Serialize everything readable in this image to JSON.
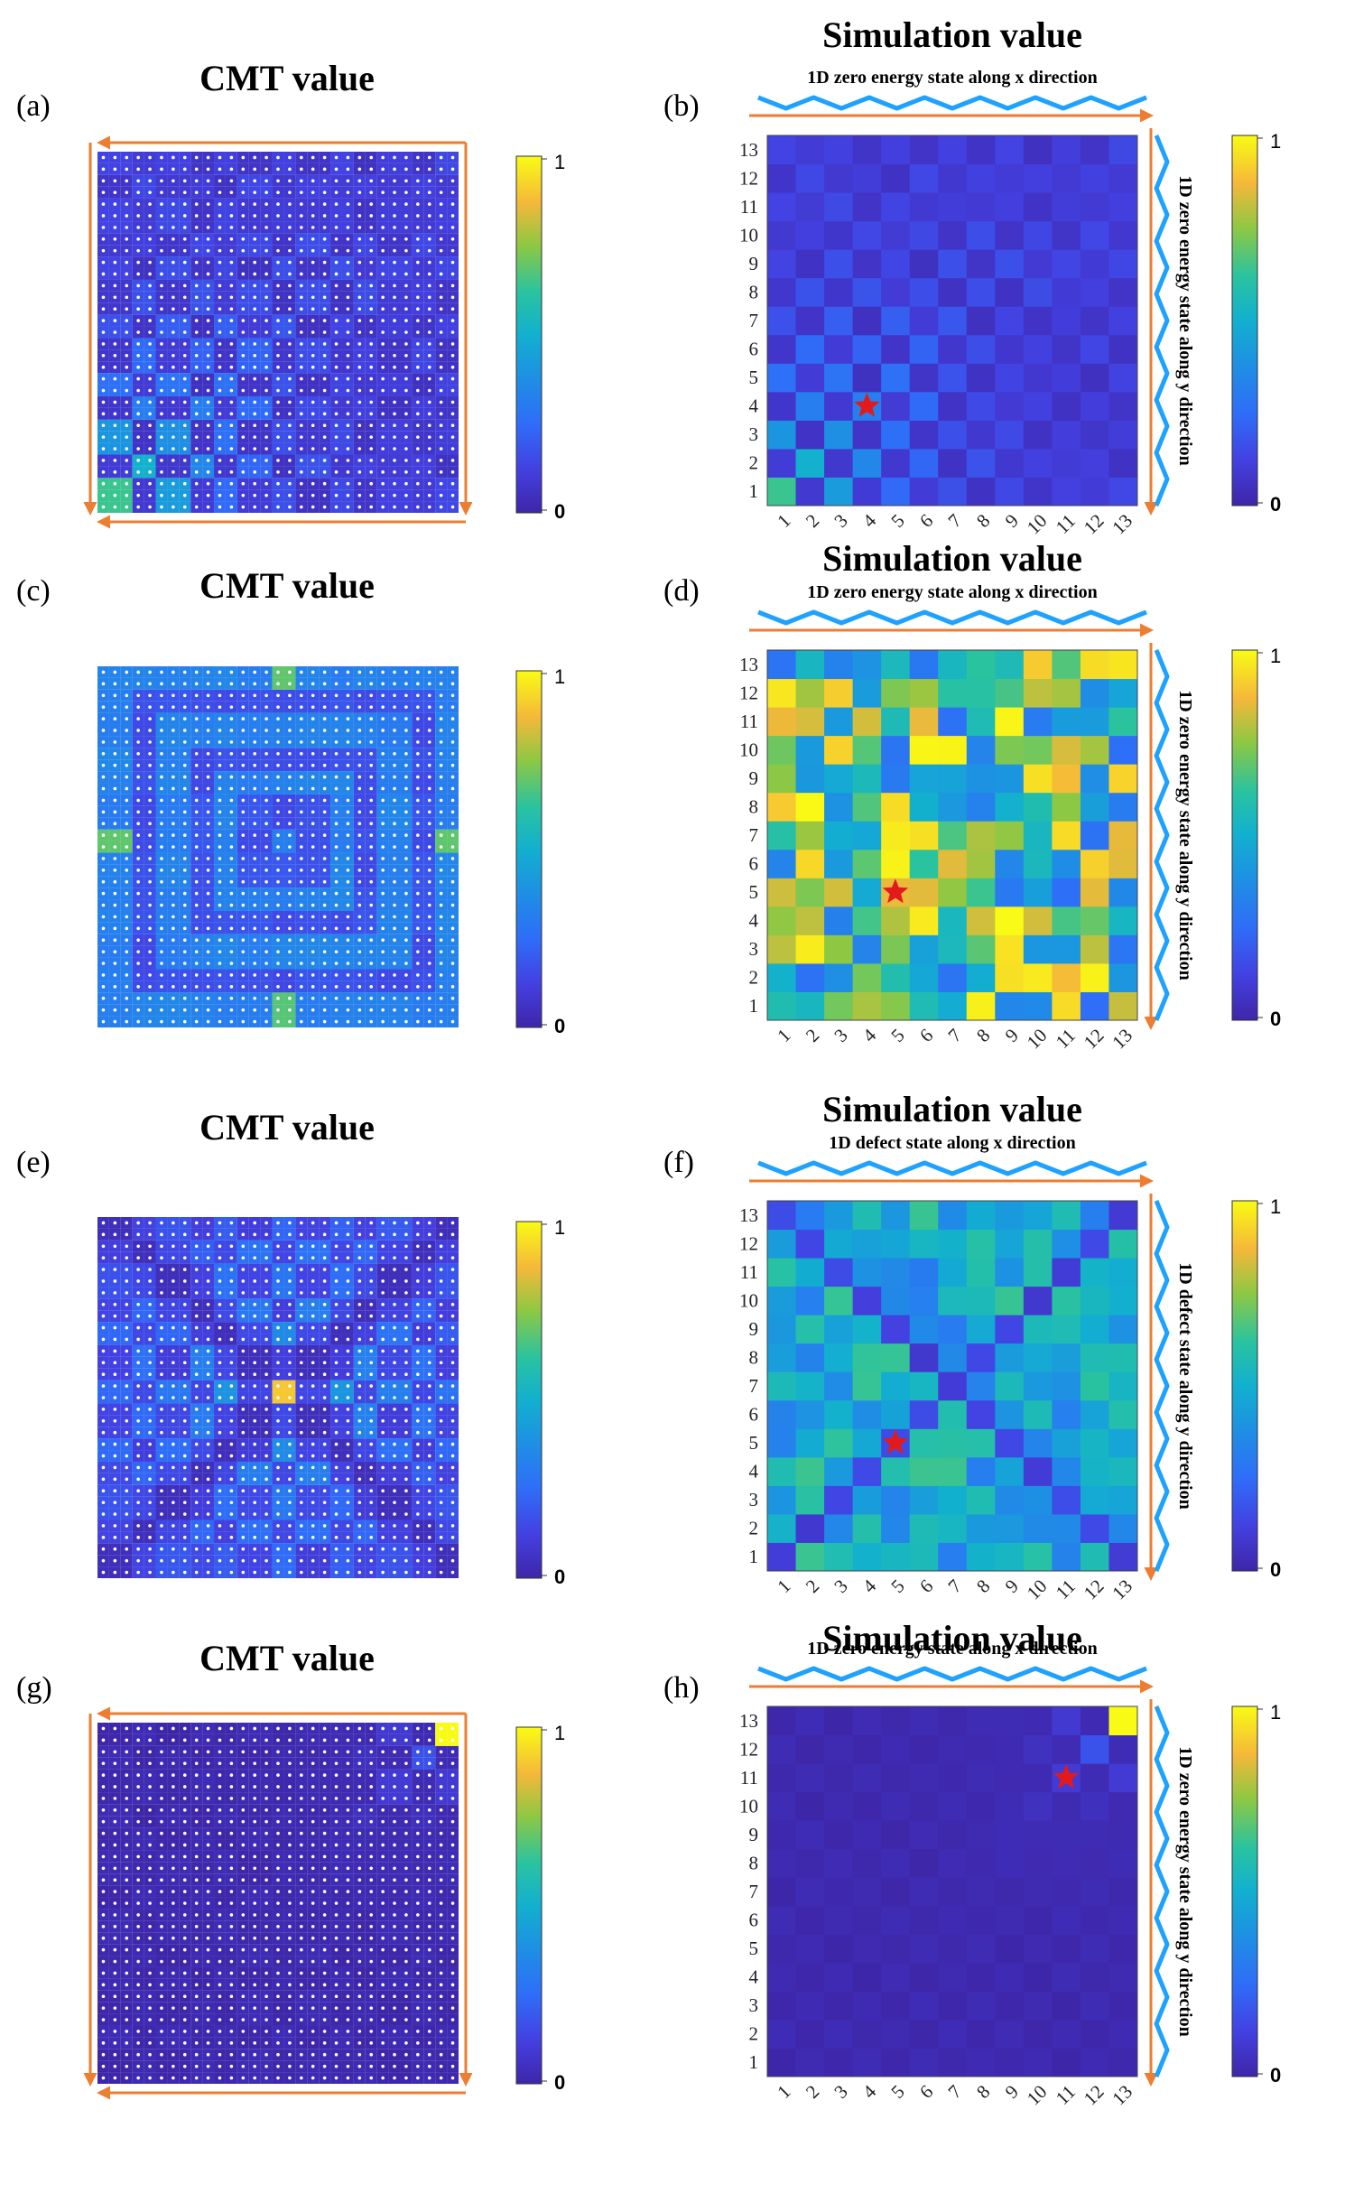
{
  "colors": {
    "arrow": "#ed7d31",
    "wave": "#1fa2ff",
    "star": "#e31a1c",
    "dot": "#ffffff"
  },
  "colormap": "parula",
  "chart_data": [
    {
      "id": "a",
      "panel_label": "(a)",
      "type": "heatmap",
      "title": "CMT value",
      "grid": "dots",
      "edge_arrows": true,
      "colorbar": {
        "max_label": "1",
        "min_label": "0"
      },
      "pattern": "corner-bottom-left"
    },
    {
      "id": "b",
      "panel_label": "(b)",
      "type": "heatmap",
      "title": "Simulation value",
      "x_annotation": "1D zero energy state along x direction",
      "y_annotation": "1D zero energy state along y direction",
      "x_ticks": [
        "1",
        "2",
        "3",
        "4",
        "5",
        "6",
        "7",
        "8",
        "9",
        "10",
        "11",
        "12",
        "13"
      ],
      "y_ticks": [
        "1",
        "2",
        "3",
        "4",
        "5",
        "6",
        "7",
        "8",
        "9",
        "10",
        "11",
        "12",
        "13"
      ],
      "star": {
        "x": 4,
        "y": 4
      },
      "colorbar": {
        "max_label": "1",
        "min_label": "0"
      },
      "pattern": "corner-bottom-left"
    },
    {
      "id": "c",
      "panel_label": "(c)",
      "type": "heatmap",
      "title": "CMT value",
      "grid": "dots",
      "colorbar": {
        "max_label": "1",
        "min_label": "0"
      },
      "pattern": "edge-rings"
    },
    {
      "id": "d",
      "panel_label": "(d)",
      "type": "heatmap",
      "title": "Simulation value",
      "x_annotation": "1D zero energy state along x direction",
      "y_annotation": "1D zero energy state along y direction",
      "x_ticks": [
        "1",
        "2",
        "3",
        "4",
        "5",
        "6",
        "7",
        "8",
        "9",
        "10",
        "11",
        "12",
        "13"
      ],
      "y_ticks": [
        "1",
        "2",
        "3",
        "4",
        "5",
        "6",
        "7",
        "8",
        "9",
        "10",
        "11",
        "12",
        "13"
      ],
      "star": {
        "x": 5,
        "y": 5
      },
      "colorbar": {
        "max_label": "1",
        "min_label": "0"
      },
      "pattern": "random-bright"
    },
    {
      "id": "e",
      "panel_label": "(e)",
      "type": "heatmap",
      "title": "CMT value",
      "grid": "dots",
      "colorbar": {
        "max_label": "1",
        "min_label": "0"
      },
      "pattern": "defect-center"
    },
    {
      "id": "f",
      "panel_label": "(f)",
      "type": "heatmap",
      "title": "Simulation value",
      "x_annotation": "1D defect state along x direction",
      "y_annotation": "1D defect state along y direction",
      "x_ticks": [
        "1",
        "2",
        "3",
        "4",
        "5",
        "6",
        "7",
        "8",
        "9",
        "10",
        "11",
        "12",
        "13"
      ],
      "y_ticks": [
        "1",
        "2",
        "3",
        "4",
        "5",
        "6",
        "7",
        "8",
        "9",
        "10",
        "11",
        "12",
        "13"
      ],
      "star": {
        "x": 5,
        "y": 5
      },
      "colorbar": {
        "max_label": "1",
        "min_label": "0"
      },
      "pattern": "defect-diagonal"
    },
    {
      "id": "g",
      "panel_label": "(g)",
      "type": "heatmap",
      "title": "CMT value",
      "grid": "dots",
      "edge_arrows": true,
      "colorbar": {
        "max_label": "1",
        "min_label": "0"
      },
      "pattern": "corner-top-right"
    },
    {
      "id": "h",
      "panel_label": "(h)",
      "type": "heatmap",
      "title": "Simulation value",
      "x_annotation": "1D zero energy state along x direction",
      "y_annotation": "1D zero energy state along y direction",
      "x_ticks": [
        "1",
        "2",
        "3",
        "4",
        "5",
        "6",
        "7",
        "8",
        "9",
        "10",
        "11",
        "12",
        "13"
      ],
      "y_ticks": [
        "1",
        "2",
        "3",
        "4",
        "5",
        "6",
        "7",
        "8",
        "9",
        "10",
        "11",
        "12",
        "13"
      ],
      "star": {
        "x": 11,
        "y": 11
      },
      "colorbar": {
        "max_label": "1",
        "min_label": "0"
      },
      "pattern": "corner-top-right"
    }
  ]
}
